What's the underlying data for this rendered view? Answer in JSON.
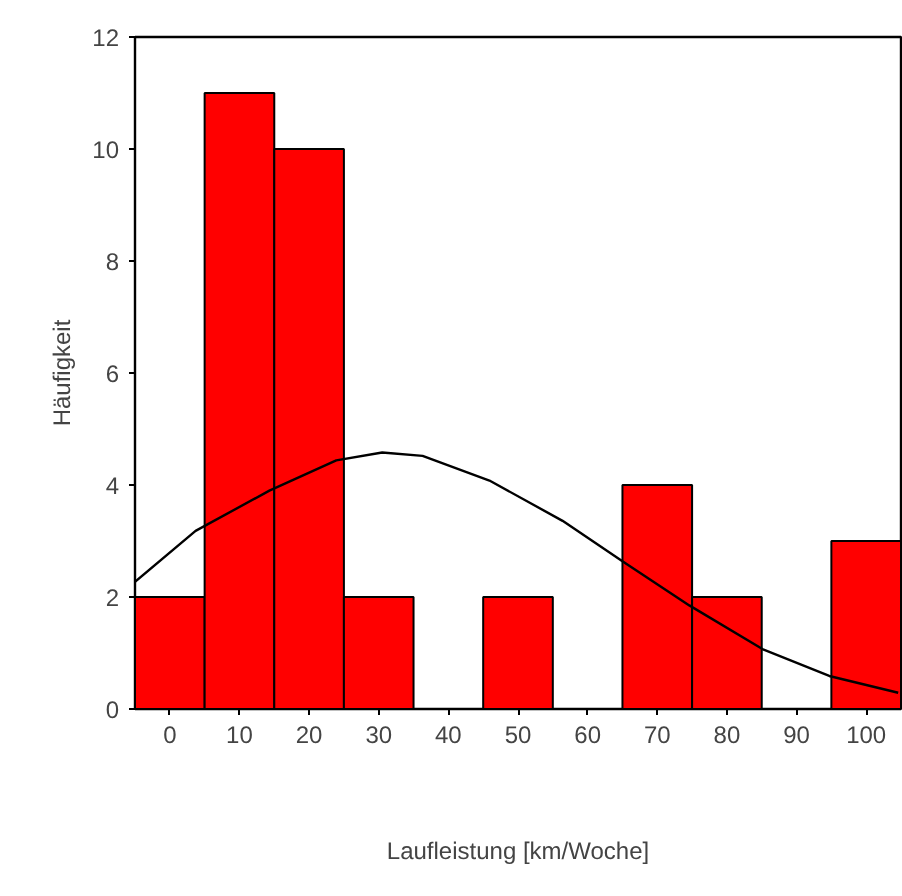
{
  "chart_data": {
    "type": "histogram",
    "xlabel": "Laufleistung [km/Woche]",
    "ylabel": "Häufigkeit",
    "bins": [
      -5,
      5,
      15,
      25,
      35,
      45,
      55,
      65,
      75,
      85,
      95,
      105
    ],
    "values": [
      2,
      11,
      10,
      2,
      0,
      2,
      0,
      4,
      2,
      0,
      3
    ],
    "color": "#ff0000",
    "series": [
      {
        "type": "line",
        "color": "#000000",
        "x": [
          -5,
          3.7,
          14.3,
          23.9,
          30.5,
          36.3,
          45.9,
          56.4,
          65,
          74.6,
          85.1,
          94.7,
          104.6
        ],
        "values": [
          2.27,
          3.18,
          3.9,
          4.44,
          4.58,
          4.52,
          4.08,
          3.36,
          2.64,
          1.85,
          1.07,
          0.59,
          0.29
        ]
      }
    ],
    "xlim": [
      -5,
      105
    ],
    "ylim": [
      0,
      12
    ],
    "xticks": [
      0,
      10,
      20,
      30,
      40,
      50,
      60,
      70,
      80,
      90,
      100
    ],
    "yticks": [
      0,
      2,
      4,
      6,
      8,
      10,
      12
    ],
    "grid": false
  }
}
